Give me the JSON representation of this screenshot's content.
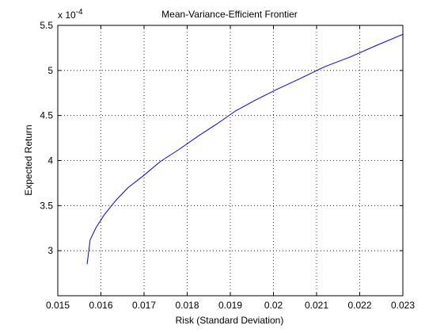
{
  "chart_data": {
    "type": "line",
    "title": "Mean-Variance-Efficient Frontier",
    "xlabel": "Risk (Standard Deviation)",
    "ylabel": "Expected Return",
    "y_exponent_label": "x 10",
    "y_exponent_power": "-4",
    "xlim": [
      0.015,
      0.023
    ],
    "ylim": [
      2.5,
      5.5
    ],
    "grid": true,
    "x_ticks": [
      "0.015",
      "0.016",
      "0.017",
      "0.018",
      "0.019",
      "0.02",
      "0.021",
      "0.022",
      "0.023"
    ],
    "y_ticks": [
      "3",
      "3.5",
      "4",
      "4.5",
      "5",
      "5.5"
    ],
    "series": [
      {
        "color": "#0000ff",
        "x": [
          0.01568,
          0.01575,
          0.01588,
          0.01608,
          0.01635,
          0.01663,
          0.01698,
          0.01738,
          0.0178,
          0.01828,
          0.0187,
          0.01912,
          0.01958,
          0.02008,
          0.02062,
          0.02118,
          0.02178,
          0.0224,
          0.023
        ],
        "y": [
          2.85,
          3.12,
          3.25,
          3.4,
          3.56,
          3.7,
          3.83,
          3.99,
          4.12,
          4.28,
          4.41,
          4.55,
          4.67,
          4.79,
          4.91,
          5.04,
          5.15,
          5.28,
          5.4
        ]
      }
    ]
  }
}
